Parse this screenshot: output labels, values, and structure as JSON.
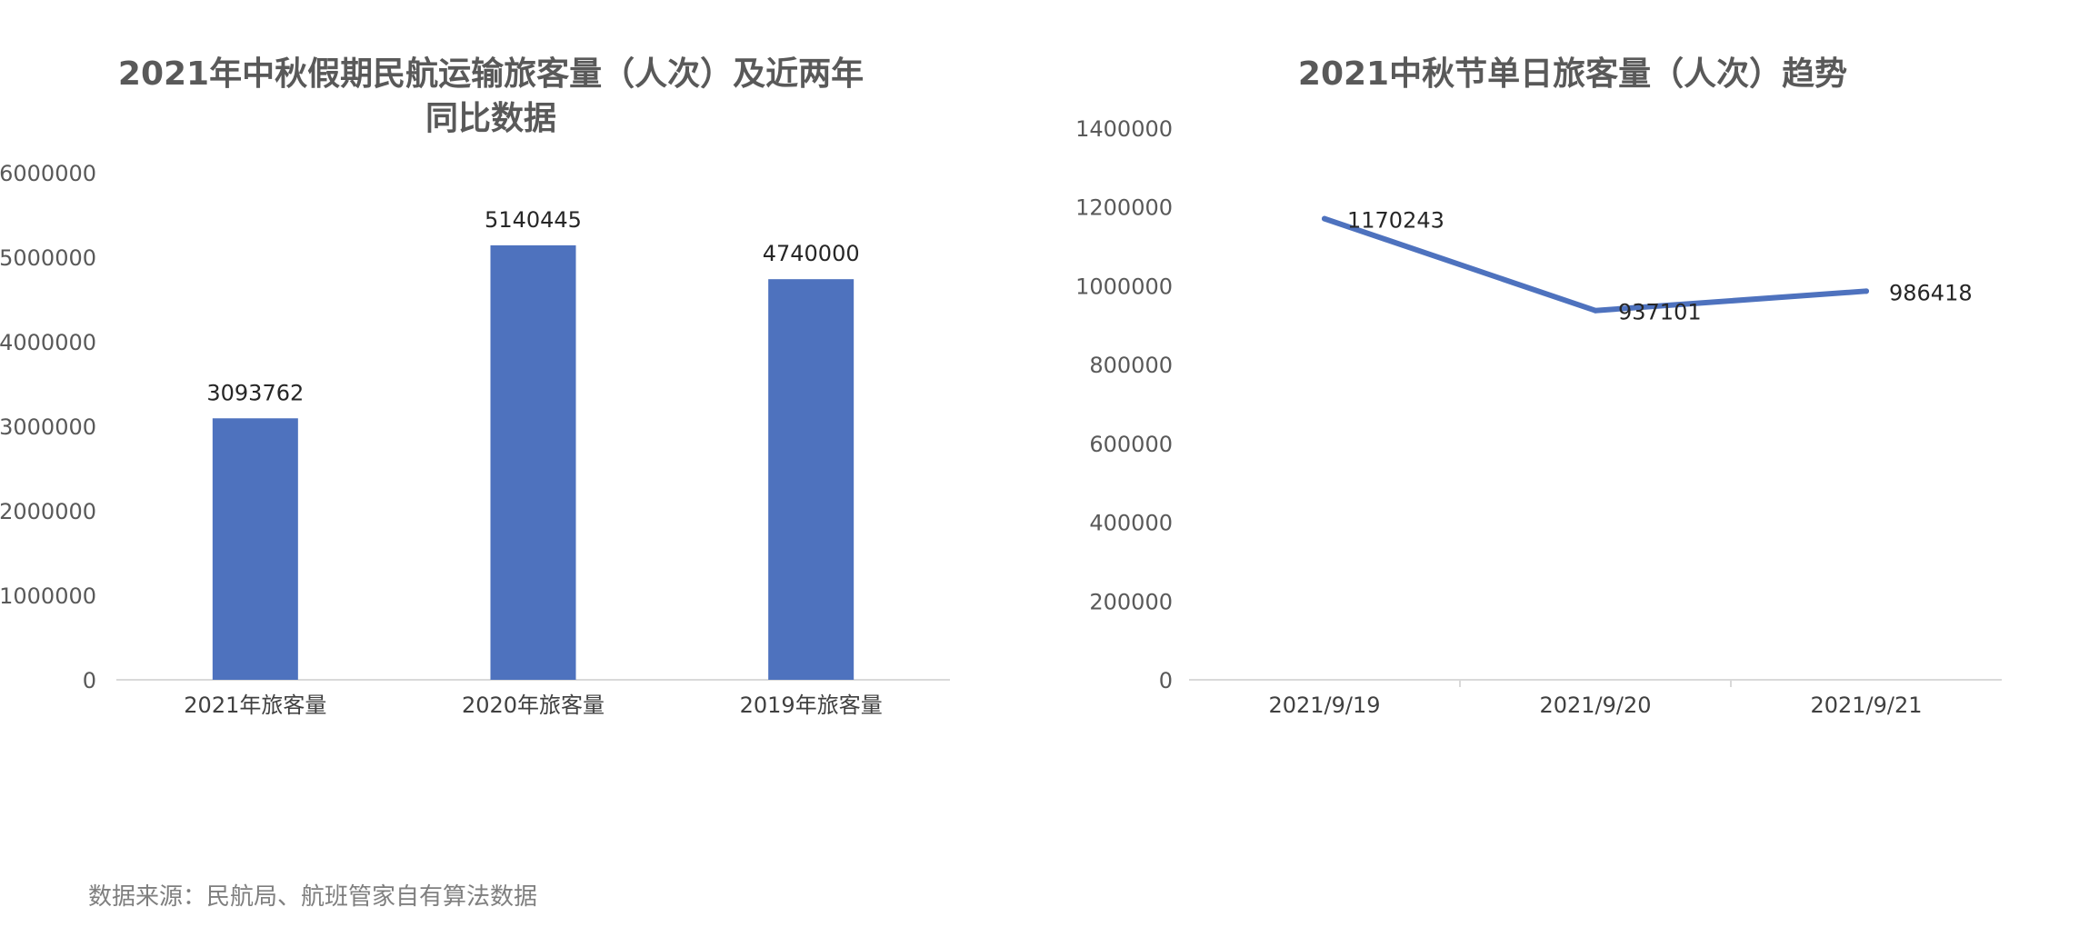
{
  "chart_data": [
    {
      "type": "bar",
      "title": "2021年中秋假期民航运输旅客量（人次）及近两年同比数据",
      "title_lines": [
        "2021年中秋假期民航运输旅客量（人次）及近两年",
        "同比数据"
      ],
      "categories": [
        "2021年旅客量",
        "2020年旅客量",
        "2019年旅客量"
      ],
      "values": [
        3093762,
        5140445,
        4740000
      ],
      "ylim": [
        0,
        6000000
      ],
      "yticks": [
        "0",
        "1000000",
        "2000000",
        "3000000",
        "4000000",
        "5000000",
        "6000000"
      ],
      "data_labels": [
        "3093762",
        "5140445",
        "4740000"
      ],
      "color": "#4E72BE",
      "grid": false,
      "legend": "none"
    },
    {
      "type": "line",
      "title": "2021中秋节单日旅客量（人次）趋势",
      "categories": [
        "2021/9/19",
        "2021/9/20",
        "2021/9/21"
      ],
      "values": [
        1170243,
        937101,
        986418
      ],
      "ylim": [
        0,
        1400000
      ],
      "yticks": [
        "0",
        "200000",
        "400000",
        "600000",
        "800000",
        "1000000",
        "1200000",
        "1400000"
      ],
      "data_labels": [
        "1170243",
        "937101",
        "986418"
      ],
      "color": "#4E72BE",
      "grid": false,
      "legend": "none"
    }
  ],
  "footer": {
    "source": "数据来源：民航局、航班管家自有算法数据"
  }
}
